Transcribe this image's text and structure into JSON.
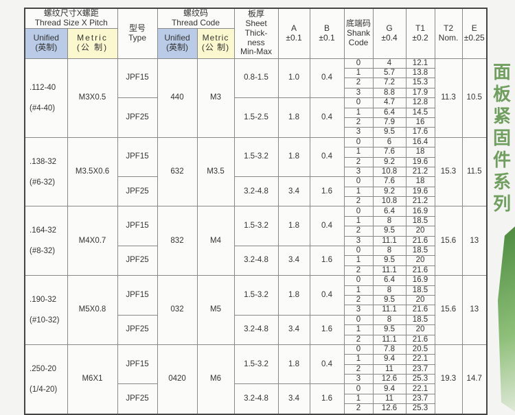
{
  "header": {
    "thread_size": {
      "cn": "螺纹尺寸X螺距",
      "en": "Thread Size X Pitch"
    },
    "unified": {
      "en": "Unified",
      "cn": "(英制)"
    },
    "metric": {
      "en": "Metric",
      "cn": "(公 制)"
    },
    "type": {
      "cn": "型号",
      "en": "Type"
    },
    "thread_code": {
      "cn": "螺纹码",
      "en": "Thread Code"
    },
    "sheet": {
      "cn": "板厚",
      "en1": "Sheet",
      "en2": "Thick-",
      "en3": "ness",
      "en4": "Min-Max"
    },
    "a": {
      "name": "A",
      "tol": "±0.1"
    },
    "b": {
      "name": "B",
      "tol": "±0.1"
    },
    "shank": {
      "cn": "底端码",
      "en1": "Shank",
      "en2": "Code"
    },
    "g": {
      "name": "G",
      "tol": "±0.4"
    },
    "t1": {
      "name": "T1",
      "tol": "±0.2"
    },
    "t2": {
      "name": "T2",
      "tol": "Nom."
    },
    "e": {
      "name": "E",
      "tol": "±0.25"
    }
  },
  "groups": [
    {
      "unified": ".112-40",
      "unified_alt": "(#4-40)",
      "metric": "M3X0.5",
      "code_unified": "440",
      "code_metric": "M3",
      "t2": "11.3",
      "e": "10.5",
      "variants": [
        {
          "type": "JPF15",
          "sheet": "0.8-1.5",
          "a": "1.0",
          "b": "0.4",
          "rows": [
            [
              "0",
              "4",
              "12.1"
            ],
            [
              "1",
              "5.7",
              "13.8"
            ],
            [
              "2",
              "7.2",
              "15.3"
            ],
            [
              "3",
              "8.8",
              "17.9"
            ]
          ]
        },
        {
          "type": "JPF25",
          "sheet": "1.5-2.5",
          "a": "1.8",
          "b": "0.4",
          "rows": [
            [
              "0",
              "4.7",
              "12.8"
            ],
            [
              "1",
              "6.4",
              "14.5"
            ],
            [
              "2",
              "7.9",
              "16"
            ],
            [
              "3",
              "9.5",
              "17.6"
            ]
          ]
        }
      ]
    },
    {
      "unified": ".138-32",
      "unified_alt": "(#6-32)",
      "metric": "M3.5X0.6",
      "code_unified": "632",
      "code_metric": "M3.5",
      "t2": "15.3",
      "e": "11.5",
      "variants": [
        {
          "type": "JPF15",
          "sheet": "1.5-3.2",
          "a": "1.8",
          "b": "0.4",
          "rows": [
            [
              "0",
              "6",
              "16.4"
            ],
            [
              "1",
              "7.6",
              "18"
            ],
            [
              "2",
              "9.2",
              "19.6"
            ],
            [
              "3",
              "10.8",
              "21.2"
            ]
          ]
        },
        {
          "type": "JPF25",
          "sheet": "3.2-4.8",
          "a": "3.4",
          "b": "1.6",
          "rows": [
            [
              "0",
              "7.6",
              "18"
            ],
            [
              "1",
              "9.2",
              "19.6"
            ],
            [
              "2",
              "10.8",
              "21.2"
            ]
          ]
        }
      ]
    },
    {
      "unified": ".164-32",
      "unified_alt": "(#8-32)",
      "metric": "M4X0.7",
      "code_unified": "832",
      "code_metric": "M4",
      "t2": "15.6",
      "e": "13",
      "variants": [
        {
          "type": "JPF15",
          "sheet": "1.5-3.2",
          "a": "1.8",
          "b": "0.4",
          "rows": [
            [
              "0",
              "6.4",
              "16.9"
            ],
            [
              "1",
              "8",
              "18.5"
            ],
            [
              "2",
              "9.5",
              "20"
            ],
            [
              "3",
              "11.1",
              "21.6"
            ]
          ]
        },
        {
          "type": "JPF25",
          "sheet": "3.2-4.8",
          "a": "3.4",
          "b": "1.6",
          "rows": [
            [
              "0",
              "8",
              "18.5"
            ],
            [
              "1",
              "9.5",
              "20"
            ],
            [
              "2",
              "11.1",
              "21.6"
            ]
          ]
        }
      ]
    },
    {
      "unified": ".190-32",
      "unified_alt": "(#10-32)",
      "metric": "M5X0.8",
      "code_unified": "032",
      "code_metric": "M5",
      "t2": "15.6",
      "e": "13",
      "variants": [
        {
          "type": "JPF15",
          "sheet": "1.5-3.2",
          "a": "1.8",
          "b": "0.4",
          "rows": [
            [
              "0",
              "6.4",
              "16.9"
            ],
            [
              "1",
              "8",
              "18.5"
            ],
            [
              "2",
              "9.5",
              "20"
            ],
            [
              "3",
              "11.1",
              "21.6"
            ]
          ]
        },
        {
          "type": "JPF25",
          "sheet": "3.2-4.8",
          "a": "3.4",
          "b": "1.6",
          "rows": [
            [
              "0",
              "8",
              "18.5"
            ],
            [
              "1",
              "9.5",
              "20"
            ],
            [
              "2",
              "11.1",
              "21.6"
            ]
          ]
        }
      ]
    },
    {
      "unified": ".250-20",
      "unified_alt": "(1/4-20)",
      "metric": "M6X1",
      "code_unified": "0420",
      "code_metric": "M6",
      "t2": "19.3",
      "e": "14.7",
      "variants": [
        {
          "type": "JPF15",
          "sheet": "1.5-3.2",
          "a": "1.8",
          "b": "0.4",
          "rows": [
            [
              "0",
              "7.8",
              "20.5"
            ],
            [
              "1",
              "9.4",
              "22.1"
            ],
            [
              "2",
              "11",
              "23.7"
            ],
            [
              "3",
              "12.6",
              "25.3"
            ]
          ]
        },
        {
          "type": "JPF25",
          "sheet": "3.2-4.8",
          "a": "3.4",
          "b": "1.6",
          "rows": [
            [
              "0",
              "9.4",
              "22.1"
            ],
            [
              "1",
              "11",
              "23.7"
            ],
            [
              "2",
              "12.6",
              "25.3"
            ]
          ]
        }
      ]
    }
  ],
  "side_title": "面板紧固件系列",
  "colors": {
    "unified_bg": "#b9cbe6",
    "metric_bg": "#fbf7cf",
    "side_title": "#6f9e5f"
  }
}
